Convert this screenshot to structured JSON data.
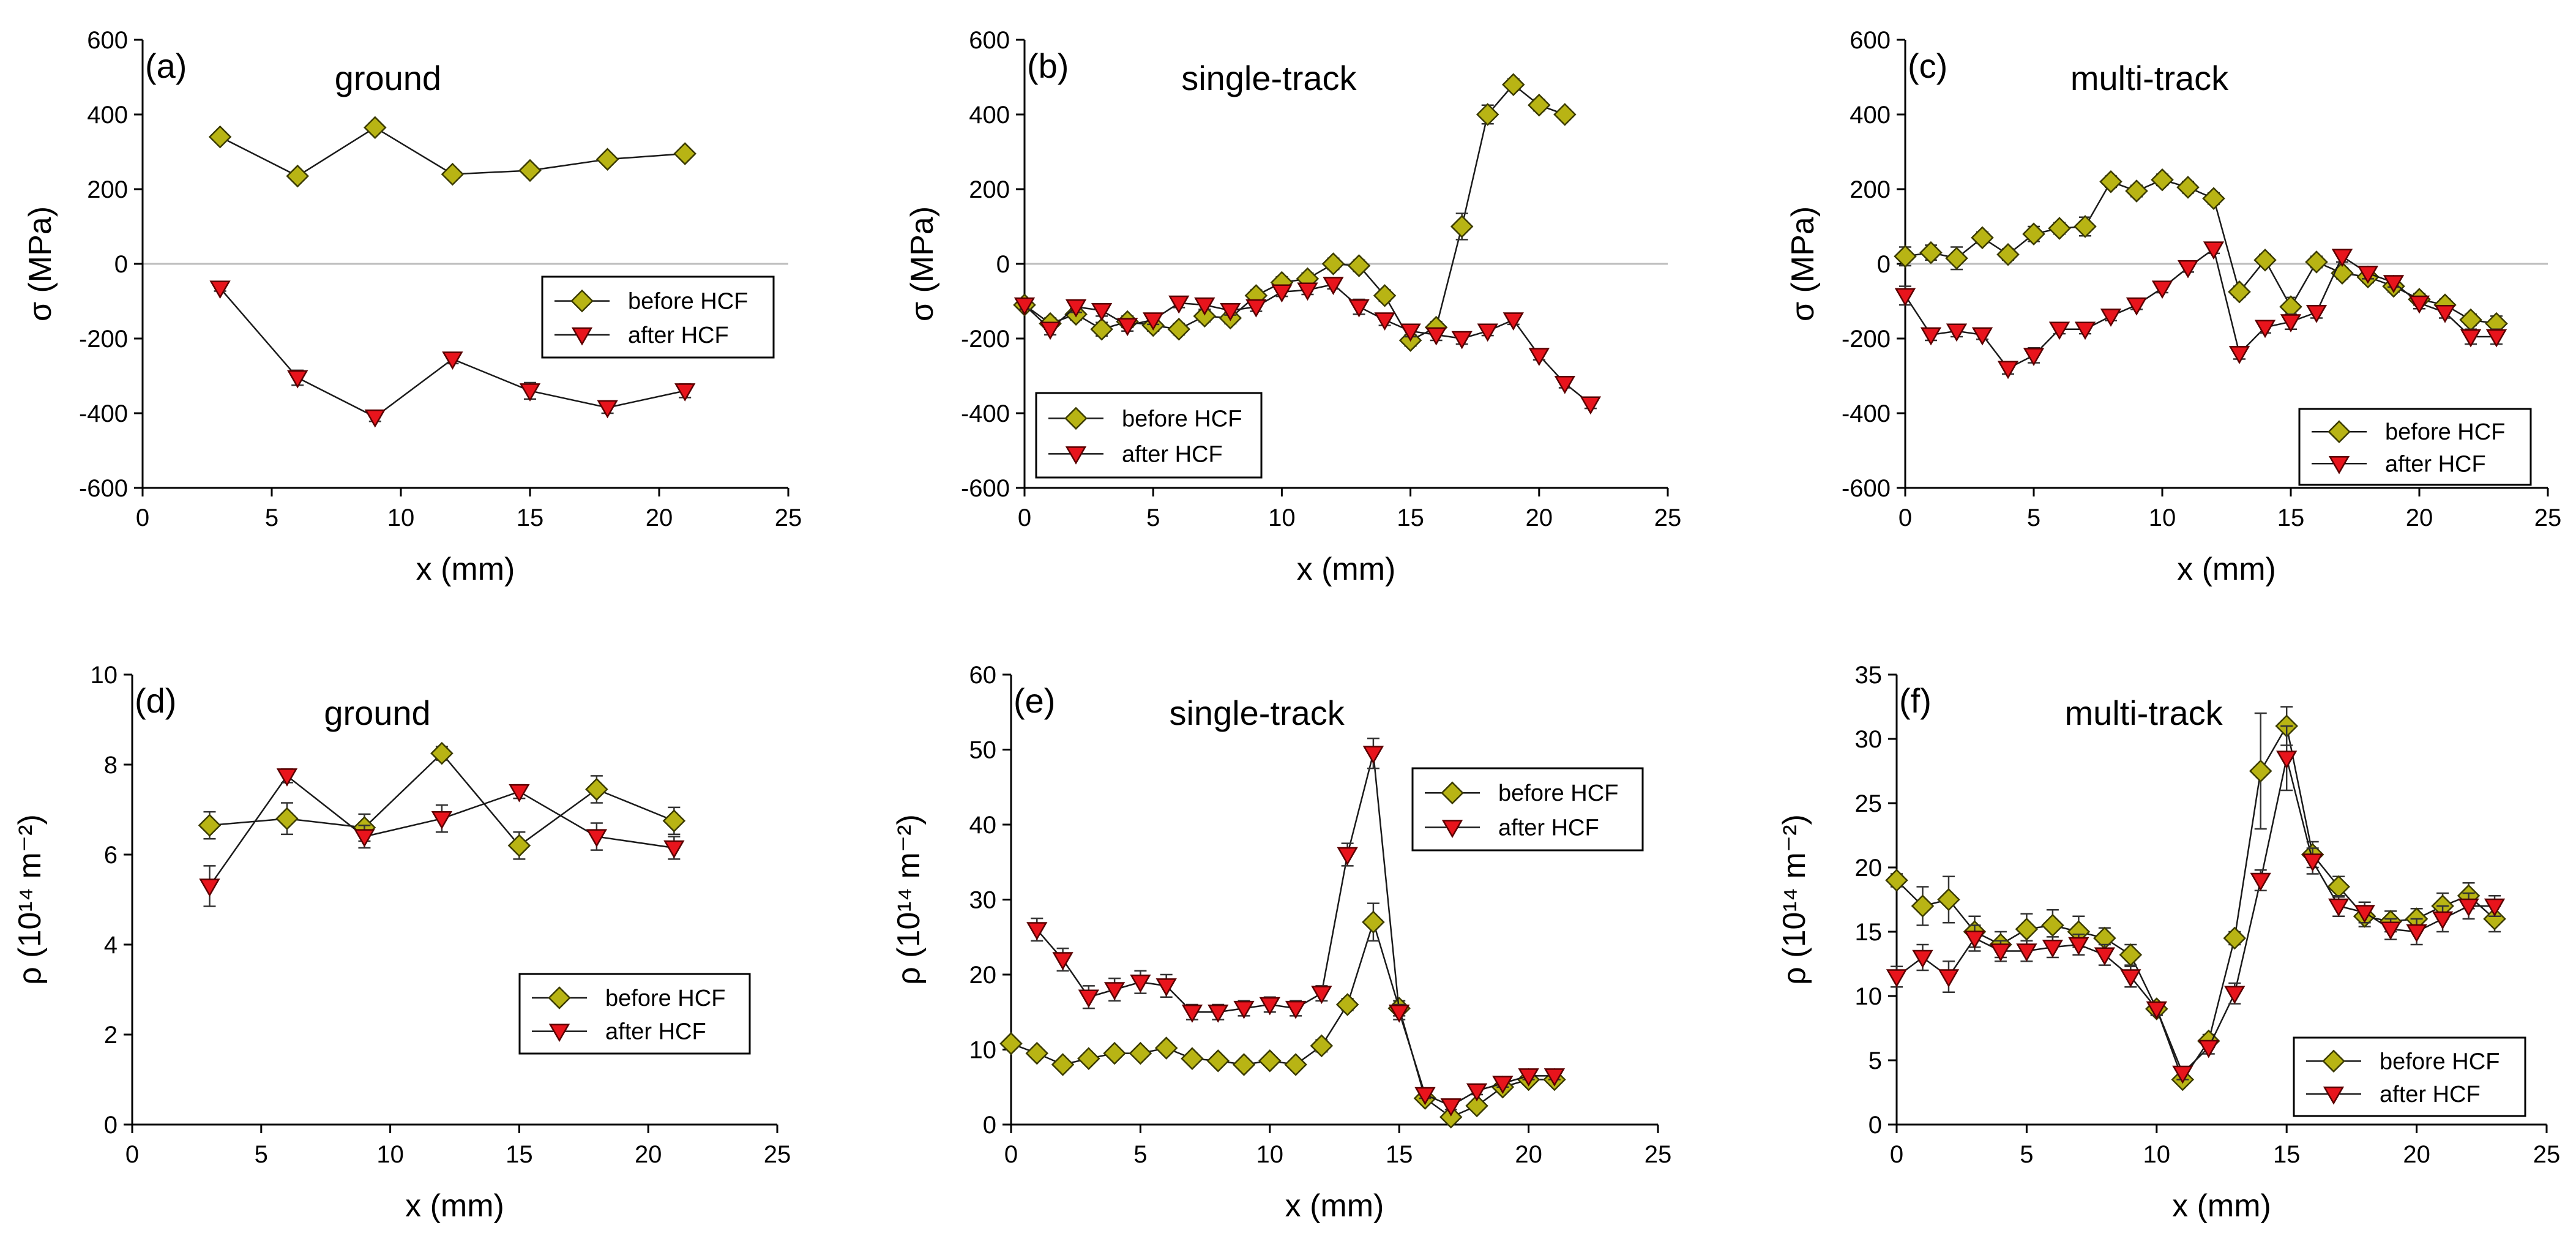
{
  "legend_labels": [
    "before HCF",
    "after HCF"
  ],
  "series_colors": {
    "before HCF": "#b8b414",
    "after HCF": "#e8141c"
  },
  "chart_data": [
    {
      "id": "a",
      "letter": "(a)",
      "type": "scatter",
      "title": "ground",
      "xlabel": "x (mm)",
      "ylabel": "σ (MPa)",
      "xlim": [
        0,
        25
      ],
      "ylim": [
        -600,
        600
      ],
      "xticks": [
        0,
        5,
        10,
        15,
        20,
        25
      ],
      "yticks": [
        -600,
        -400,
        -200,
        0,
        200,
        400,
        600
      ],
      "zero_line": true,
      "legend_position": "center-right",
      "series": [
        {
          "name": "before HCF",
          "marker": "diamond",
          "x": [
            3,
            6,
            9,
            12,
            15,
            18,
            21
          ],
          "y": [
            340,
            235,
            365,
            240,
            250,
            280,
            295
          ],
          "err": [
            12,
            10,
            12,
            10,
            10,
            10,
            12
          ]
        },
        {
          "name": "after HCF",
          "marker": "triangle",
          "x": [
            3,
            6,
            9,
            12,
            15,
            18,
            21
          ],
          "y": [
            -65,
            -305,
            -410,
            -255,
            -340,
            -385,
            -340
          ],
          "err": [
            8,
            20,
            12,
            12,
            22,
            15,
            18
          ]
        }
      ]
    },
    {
      "id": "b",
      "letter": "(b)",
      "type": "scatter",
      "title": "single-track",
      "xlabel": "x (mm)",
      "ylabel": "σ (MPa)",
      "xlim": [
        0,
        25
      ],
      "ylim": [
        -600,
        600
      ],
      "xticks": [
        0,
        5,
        10,
        15,
        20,
        25
      ],
      "yticks": [
        -600,
        -400,
        -200,
        0,
        200,
        400,
        600
      ],
      "zero_line": true,
      "legend_position": "bottom-left",
      "series": [
        {
          "name": "before HCF",
          "marker": "diamond",
          "x": [
            0,
            1,
            2,
            3,
            4,
            5,
            6,
            7,
            8,
            9,
            10,
            11,
            12,
            13,
            14,
            15,
            16,
            17,
            18,
            19,
            20,
            21
          ],
          "y": [
            -110,
            -160,
            -135,
            -175,
            -155,
            -165,
            -175,
            -140,
            -145,
            -85,
            -50,
            -40,
            0,
            -5,
            -85,
            -205,
            -170,
            100,
            400,
            480,
            425,
            400
          ],
          "err": [
            12,
            15,
            15,
            18,
            15,
            15,
            15,
            15,
            15,
            15,
            15,
            15,
            15,
            15,
            15,
            15,
            15,
            35,
            25,
            15,
            15,
            12
          ]
        },
        {
          "name": "after HCF",
          "marker": "triangle",
          "x": [
            0,
            1,
            2,
            3,
            4,
            5,
            6,
            7,
            8,
            9,
            10,
            11,
            12,
            13,
            14,
            15,
            16,
            17,
            18,
            19,
            20,
            21,
            22
          ],
          "y": [
            -110,
            -175,
            -115,
            -125,
            -165,
            -150,
            -105,
            -110,
            -125,
            -115,
            -75,
            -70,
            -55,
            -115,
            -150,
            -180,
            -190,
            -200,
            -180,
            -150,
            -245,
            -320,
            -375
          ],
          "err": [
            12,
            15,
            15,
            15,
            15,
            12,
            12,
            12,
            12,
            12,
            12,
            12,
            12,
            20,
            15,
            15,
            15,
            15,
            12,
            12,
            12,
            12,
            12
          ]
        }
      ]
    },
    {
      "id": "c",
      "letter": "(c)",
      "type": "scatter",
      "title": "multi-track",
      "xlabel": "x (mm)",
      "ylabel": "σ (MPa)",
      "xlim": [
        0,
        25
      ],
      "ylim": [
        -600,
        600
      ],
      "xticks": [
        0,
        5,
        10,
        15,
        20,
        25
      ],
      "yticks": [
        -600,
        -400,
        -200,
        0,
        200,
        400,
        600
      ],
      "zero_line": true,
      "legend_position": "bottom-right",
      "series": [
        {
          "name": "before HCF",
          "marker": "diamond",
          "x": [
            0,
            1,
            2,
            3,
            4,
            5,
            6,
            7,
            8,
            9,
            10,
            11,
            12,
            13,
            14,
            15,
            16,
            17,
            18,
            19,
            20,
            21,
            22,
            23
          ],
          "y": [
            20,
            30,
            15,
            70,
            25,
            80,
            95,
            100,
            220,
            195,
            225,
            205,
            175,
            -75,
            10,
            -115,
            5,
            -25,
            -35,
            -60,
            -95,
            -110,
            -150,
            -160
          ],
          "err": [
            25,
            20,
            30,
            15,
            15,
            20,
            15,
            25,
            15,
            15,
            15,
            15,
            15,
            15,
            15,
            25,
            15,
            15,
            15,
            15,
            15,
            15,
            15,
            20
          ]
        },
        {
          "name": "after HCF",
          "marker": "triangle",
          "x": [
            0,
            1,
            2,
            3,
            4,
            5,
            6,
            7,
            8,
            9,
            10,
            11,
            12,
            13,
            14,
            15,
            16,
            17,
            18,
            19,
            20,
            21,
            22,
            23
          ],
          "y": [
            -85,
            -190,
            -180,
            -190,
            -280,
            -245,
            -175,
            -175,
            -140,
            -110,
            -65,
            -10,
            40,
            -240,
            -170,
            -155,
            -130,
            20,
            -25,
            -50,
            -105,
            -130,
            -195,
            -195
          ],
          "err": [
            25,
            15,
            15,
            12,
            15,
            20,
            12,
            12,
            12,
            12,
            12,
            12,
            12,
            15,
            15,
            20,
            15,
            15,
            15,
            12,
            15,
            15,
            20,
            20
          ]
        }
      ]
    },
    {
      "id": "d",
      "letter": "(d)",
      "type": "scatter",
      "title": "ground",
      "xlabel": "x (mm)",
      "ylabel": "ρ (10¹⁴ m⁻²)",
      "xlim": [
        0,
        25
      ],
      "ylim": [
        0,
        10
      ],
      "xticks": [
        0,
        5,
        10,
        15,
        20,
        25
      ],
      "yticks": [
        0,
        2,
        4,
        6,
        8,
        10
      ],
      "zero_line": false,
      "legend_position": "bottom-right",
      "series": [
        {
          "name": "before HCF",
          "marker": "diamond",
          "x": [
            3,
            6,
            9,
            12,
            15,
            18,
            21
          ],
          "y": [
            6.65,
            6.8,
            6.6,
            8.25,
            6.2,
            7.45,
            6.75
          ],
          "err": [
            0.3,
            0.35,
            0.3,
            0.15,
            0.3,
            0.3,
            0.3
          ]
        },
        {
          "name": "after HCF",
          "marker": "triangle",
          "x": [
            3,
            6,
            9,
            12,
            15,
            18,
            21
          ],
          "y": [
            5.3,
            7.75,
            6.4,
            6.8,
            7.4,
            6.4,
            6.15
          ],
          "err": [
            0.45,
            0.15,
            0.25,
            0.3,
            0.15,
            0.3,
            0.25
          ]
        }
      ]
    },
    {
      "id": "e",
      "letter": "(e)",
      "type": "scatter",
      "title": "single-track",
      "xlabel": "x (mm)",
      "ylabel": "ρ (10¹⁴ m⁻²)",
      "xlim": [
        0,
        25
      ],
      "ylim": [
        0,
        60
      ],
      "xticks": [
        0,
        5,
        10,
        15,
        20,
        25
      ],
      "yticks": [
        0,
        10,
        20,
        30,
        40,
        50,
        60
      ],
      "zero_line": false,
      "legend_position": "top-right",
      "series": [
        {
          "name": "before HCF",
          "marker": "diamond",
          "x": [
            0,
            1,
            2,
            3,
            4,
            5,
            6,
            7,
            8,
            9,
            10,
            11,
            12,
            13,
            14,
            15,
            16,
            17,
            18,
            19,
            20,
            21
          ],
          "y": [
            10.8,
            9.5,
            8,
            8.8,
            9.5,
            9.5,
            10.2,
            8.8,
            8.5,
            8,
            8.5,
            8,
            10.5,
            16,
            27,
            15.5,
            3.5,
            1,
            2.5,
            5,
            6,
            6
          ],
          "err": [
            0.5,
            0.5,
            0.5,
            0.5,
            0.5,
            0.5,
            0.5,
            0.5,
            0.5,
            0.5,
            0.5,
            0.5,
            0.8,
            0.8,
            2.5,
            1.0,
            0.5,
            0.3,
            0.5,
            0.5,
            0.5,
            0.5
          ]
        },
        {
          "name": "after HCF",
          "marker": "triangle",
          "x": [
            1,
            2,
            3,
            4,
            5,
            6,
            7,
            8,
            9,
            10,
            11,
            12,
            13,
            14,
            15,
            16,
            17,
            18,
            19,
            20,
            21
          ],
          "y": [
            26,
            22,
            17,
            18,
            19,
            18.5,
            15,
            15,
            15.5,
            16,
            15.5,
            17.5,
            36,
            49.5,
            15,
            4,
            2.5,
            4.5,
            5.5,
            6.5,
            6.5
          ],
          "err": [
            1.5,
            1.5,
            1.5,
            1.5,
            1.5,
            1.5,
            1.0,
            1.0,
            1.0,
            1.0,
            1.0,
            1.0,
            1.5,
            2.0,
            1.0,
            0.5,
            0.5,
            0.5,
            0.5,
            0.5,
            0.5
          ]
        }
      ]
    },
    {
      "id": "f",
      "letter": "(f)",
      "type": "scatter",
      "title": "multi-track",
      "xlabel": "x (mm)",
      "ylabel": "ρ (10¹⁴ m⁻²)",
      "xlim": [
        0,
        25
      ],
      "ylim": [
        0,
        35
      ],
      "xticks": [
        0,
        5,
        10,
        15,
        20,
        25
      ],
      "yticks": [
        0,
        5,
        10,
        15,
        20,
        25,
        30,
        35
      ],
      "zero_line": false,
      "legend_position": "bottom-right",
      "series": [
        {
          "name": "before HCF",
          "marker": "diamond",
          "x": [
            0,
            1,
            2,
            3,
            4,
            5,
            6,
            7,
            8,
            9,
            10,
            11,
            12,
            13,
            14,
            15,
            16,
            17,
            18,
            19,
            20,
            21,
            22,
            23
          ],
          "y": [
            19,
            17,
            17.5,
            15,
            14,
            15.2,
            15.5,
            15,
            14.5,
            13.2,
            9,
            3.5,
            6.5,
            14.5,
            27.5,
            31,
            21,
            18.5,
            16.2,
            15.8,
            16,
            17,
            17.8,
            16
          ],
          "err": [
            0.5,
            1.5,
            1.8,
            1.2,
            1.0,
            1.2,
            1.2,
            1.2,
            0.8,
            0.8,
            0.5,
            0.3,
            0.5,
            0.5,
            4.5,
            1.5,
            1.0,
            0.8,
            0.8,
            0.8,
            0.8,
            1.0,
            1.0,
            1.0
          ]
        },
        {
          "name": "after HCF",
          "marker": "triangle",
          "x": [
            0,
            1,
            2,
            3,
            4,
            5,
            6,
            7,
            8,
            9,
            10,
            11,
            12,
            13,
            14,
            15,
            16,
            17,
            18,
            19,
            20,
            21,
            22,
            23
          ],
          "y": [
            11.5,
            13,
            11.5,
            14.5,
            13.5,
            13.5,
            13.8,
            14,
            13.2,
            11.5,
            9,
            4,
            6,
            10.2,
            19,
            28.5,
            20.5,
            17,
            16.5,
            15.2,
            15,
            16,
            17,
            17
          ],
          "err": [
            0.8,
            1.0,
            1.2,
            1.0,
            0.8,
            0.8,
            0.8,
            0.8,
            0.8,
            0.8,
            0.5,
            0.5,
            0.5,
            0.8,
            0.8,
            2.5,
            1.0,
            0.8,
            0.8,
            0.8,
            1.0,
            1.0,
            1.0,
            0.8
          ]
        }
      ]
    }
  ]
}
